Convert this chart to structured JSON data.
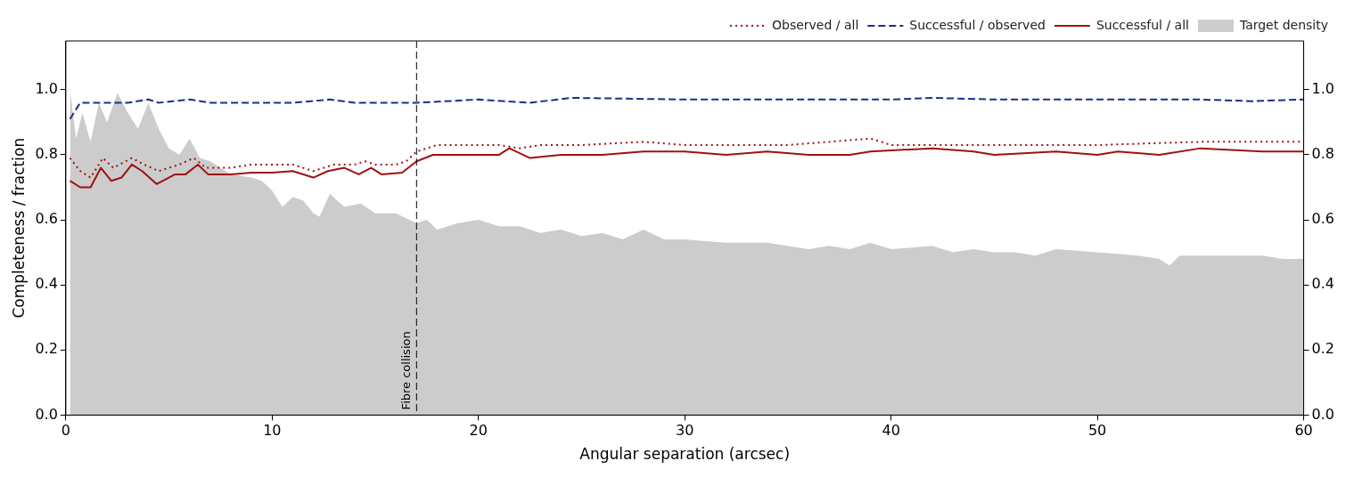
{
  "chart_data": {
    "type": "line",
    "xlabel": "Angular separation (arcsec)",
    "ylabel": "Completeness / fraction",
    "xlim": [
      0,
      60
    ],
    "xticks": [
      0,
      10,
      20,
      30,
      40,
      50,
      60
    ],
    "ylim": [
      0,
      1.15
    ],
    "yticks": [
      {
        "value": 0,
        "label": "0.0"
      },
      0.2,
      0.4,
      0.6,
      0.8,
      {
        "value": 1,
        "label": "1.0"
      }
    ],
    "y2lim": [
      0,
      1.15
    ],
    "y2ticks": [
      {
        "value": 0,
        "label": "0.0"
      },
      0.2,
      0.4,
      0.6,
      0.8,
      {
        "value": 1,
        "label": "1.0"
      }
    ],
    "legend": "top right",
    "ref_lines": [
      {
        "axis": "x",
        "value": 17,
        "label": "Fibre collision",
        "color": "#000000",
        "line_style": "dashed"
      }
    ],
    "series": [
      {
        "name": "Target density",
        "type": "area",
        "color": "#cccccc",
        "x": [
          0.2,
          0.5,
          0.8,
          1.2,
          1.6,
          2.0,
          2.5,
          3.0,
          3.5,
          4.0,
          4.5,
          5.0,
          5.5,
          6.0,
          6.5,
          7.0,
          8.0,
          9.0,
          9.5,
          10.0,
          10.5,
          11.0,
          11.5,
          12.0,
          12.3,
          12.8,
          13.5,
          14.3,
          15,
          16,
          17,
          17.5,
          18,
          19,
          20,
          21,
          22,
          23,
          24,
          25,
          26,
          27,
          28,
          29,
          30,
          32,
          34,
          36,
          37,
          38,
          39,
          40,
          42,
          43,
          44,
          45,
          46,
          47,
          48,
          50,
          52,
          53,
          53.5,
          54,
          56,
          58,
          59,
          60
        ],
        "values": [
          1.0,
          0.85,
          0.93,
          0.84,
          0.96,
          0.9,
          0.99,
          0.93,
          0.88,
          0.96,
          0.88,
          0.82,
          0.8,
          0.85,
          0.79,
          0.78,
          0.74,
          0.73,
          0.72,
          0.69,
          0.64,
          0.67,
          0.66,
          0.62,
          0.61,
          0.68,
          0.64,
          0.65,
          0.62,
          0.62,
          0.59,
          0.6,
          0.57,
          0.59,
          0.6,
          0.58,
          0.58,
          0.56,
          0.57,
          0.55,
          0.56,
          0.54,
          0.57,
          0.54,
          0.54,
          0.53,
          0.53,
          0.51,
          0.52,
          0.51,
          0.53,
          0.51,
          0.52,
          0.5,
          0.51,
          0.5,
          0.5,
          0.49,
          0.51,
          0.5,
          0.49,
          0.48,
          0.46,
          0.49,
          0.49,
          0.49,
          0.48,
          0.48
        ]
      },
      {
        "name": "Observed / all",
        "color": "#a01010",
        "line_style": "dotted",
        "x": [
          0.2,
          0.7,
          1.2,
          1.8,
          2.3,
          3.2,
          3.8,
          4.5,
          5.5,
          6.2,
          6.8,
          8,
          9,
          10,
          11,
          12,
          13,
          14,
          14.5,
          15,
          16,
          16.5,
          17,
          18,
          20,
          21,
          22,
          23,
          25,
          28,
          30,
          35,
          39,
          40,
          45,
          50,
          55,
          60
        ],
        "values": [
          0.79,
          0.75,
          0.73,
          0.79,
          0.76,
          0.79,
          0.77,
          0.75,
          0.77,
          0.79,
          0.76,
          0.76,
          0.77,
          0.77,
          0.77,
          0.75,
          0.77,
          0.77,
          0.78,
          0.77,
          0.77,
          0.78,
          0.81,
          0.83,
          0.83,
          0.83,
          0.82,
          0.83,
          0.83,
          0.84,
          0.83,
          0.83,
          0.85,
          0.83,
          0.83,
          0.83,
          0.84,
          0.84
        ]
      },
      {
        "name": "Successful / observed",
        "color": "#1a2f8a",
        "line_style": "dashed",
        "x": [
          0.2,
          0.7,
          1.5,
          2,
          3,
          4,
          4.5,
          6,
          7,
          8,
          9.5,
          11,
          12.8,
          14,
          17,
          20,
          22.5,
          24.5,
          30,
          35,
          40,
          42,
          45,
          50,
          55,
          57.5,
          60
        ],
        "values": [
          0.91,
          0.96,
          0.96,
          0.96,
          0.96,
          0.97,
          0.96,
          0.97,
          0.96,
          0.96,
          0.96,
          0.96,
          0.97,
          0.96,
          0.96,
          0.97,
          0.96,
          0.975,
          0.97,
          0.97,
          0.97,
          0.975,
          0.97,
          0.97,
          0.97,
          0.965,
          0.97
        ]
      },
      {
        "name": "Successful / all",
        "color": "#a01010",
        "line_style": "solid",
        "x": [
          0.2,
          0.7,
          1.2,
          1.7,
          2.2,
          2.7,
          3.2,
          3.7,
          4.4,
          5.3,
          5.8,
          6.4,
          6.9,
          8,
          9,
          10,
          11,
          12,
          12.7,
          13.5,
          14.2,
          14.8,
          15.3,
          16.3,
          17,
          17.8,
          19,
          20,
          21,
          21.5,
          22.5,
          24,
          26,
          28,
          30,
          32,
          34,
          36,
          38,
          39,
          42,
          44,
          45,
          48,
          50,
          51,
          53,
          55,
          58,
          60
        ],
        "values": [
          0.72,
          0.7,
          0.7,
          0.76,
          0.72,
          0.73,
          0.77,
          0.75,
          0.71,
          0.74,
          0.74,
          0.77,
          0.74,
          0.74,
          0.745,
          0.745,
          0.75,
          0.73,
          0.75,
          0.76,
          0.74,
          0.76,
          0.74,
          0.745,
          0.78,
          0.8,
          0.8,
          0.8,
          0.8,
          0.82,
          0.79,
          0.8,
          0.8,
          0.81,
          0.81,
          0.8,
          0.81,
          0.8,
          0.8,
          0.81,
          0.82,
          0.81,
          0.8,
          0.81,
          0.8,
          0.81,
          0.8,
          0.82,
          0.81,
          0.81
        ]
      }
    ]
  }
}
